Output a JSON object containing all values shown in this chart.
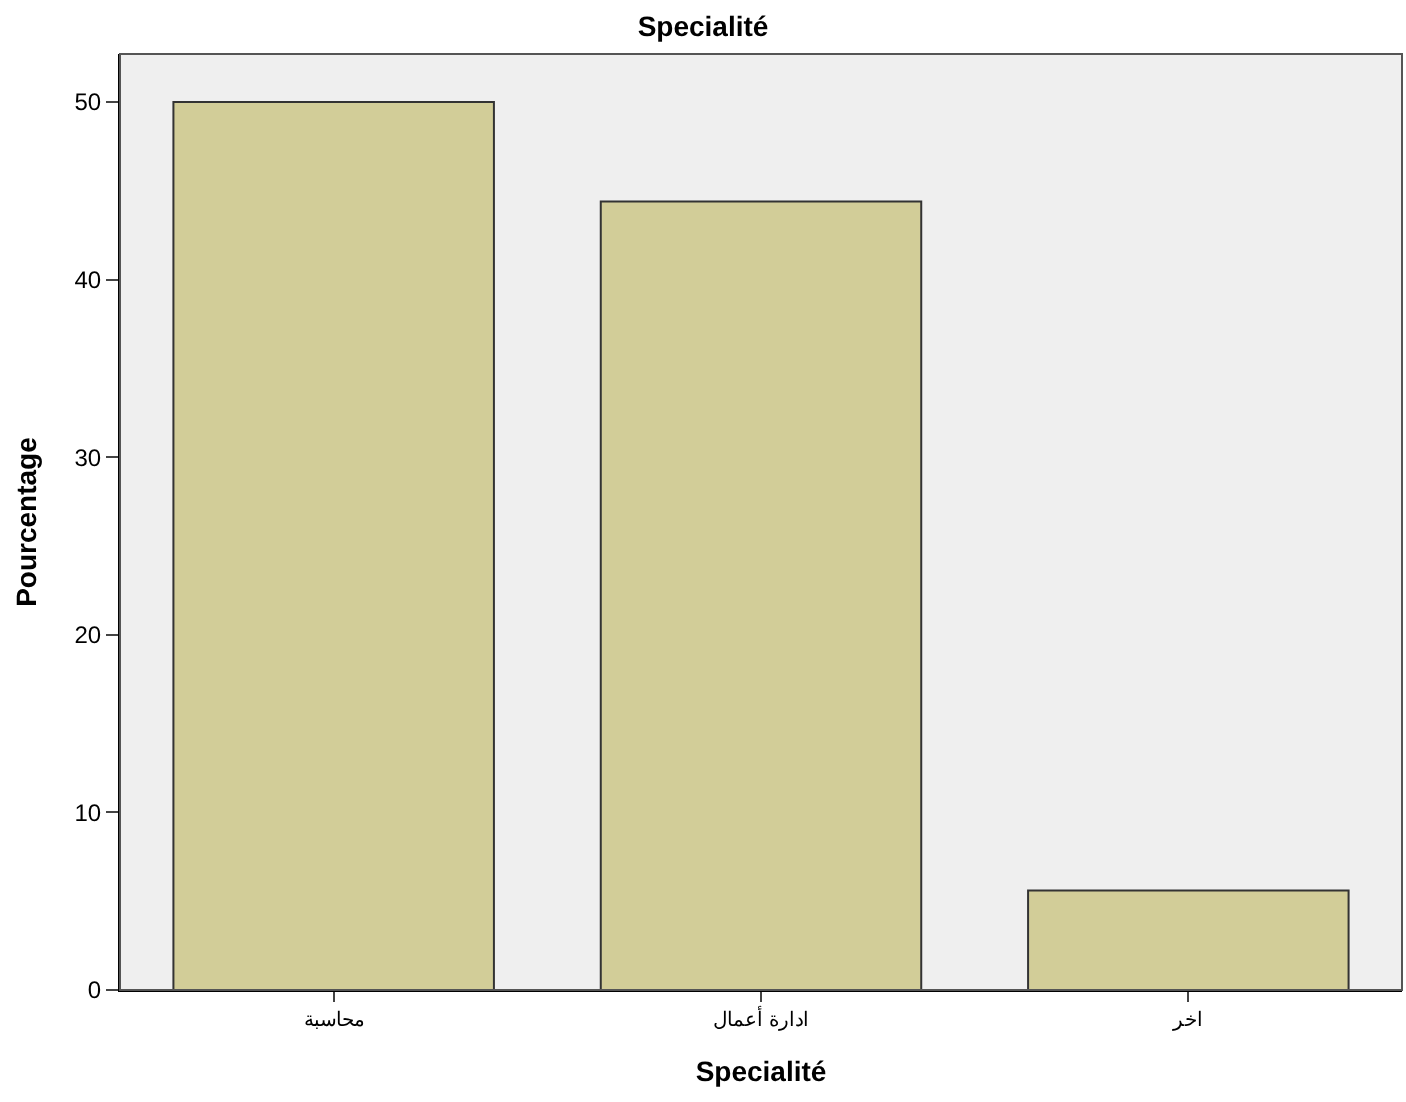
{
  "chart_data": {
    "type": "bar",
    "title": "Specialité",
    "xlabel": "Specialité",
    "ylabel": "Pourcentage",
    "categories": [
      "محاسبة",
      "ادارة أعمال",
      "اخر"
    ],
    "values": [
      50,
      44.4,
      5.6
    ],
    "color": "#d2cd98",
    "ylim": [
      0,
      52.7
    ],
    "yticks": [
      0,
      10,
      20,
      30,
      40,
      50
    ],
    "grid": false
  }
}
